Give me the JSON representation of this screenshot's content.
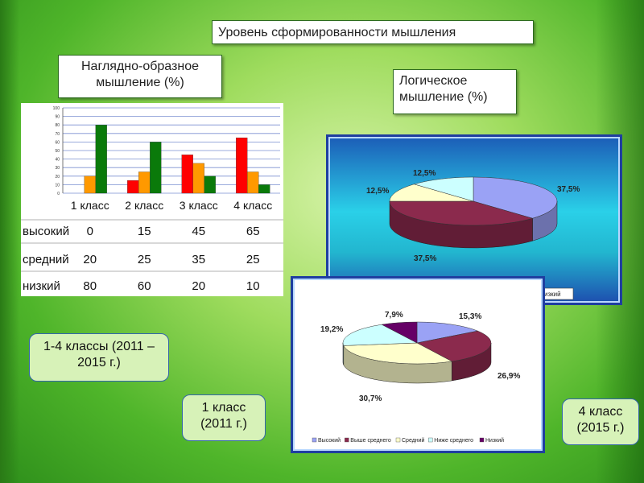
{
  "title": "Уровень сформированности мышления",
  "left_label": "Наглядно-образное мышление (%)",
  "right_label": "Логическое мышление (%)",
  "callouts": {
    "left": "1-4 классы (2011 – 2015 г.)",
    "middle": "1 класс (2011 г.)",
    "right": "4 класс (2015 г.)"
  },
  "colors": {
    "высокий": "#ff0000",
    "средний": "#ff9900",
    "низкий": "#0a7a0a"
  },
  "chart_data": [
    {
      "type": "bar",
      "categories": [
        "1 класс",
        "2 класс",
        "3 класс",
        "4 класс"
      ],
      "series": [
        {
          "name": "высокий",
          "values": [
            0,
            15,
            45,
            65
          ]
        },
        {
          "name": "средний",
          "values": [
            20,
            25,
            35,
            25
          ]
        },
        {
          "name": "низкий",
          "values": [
            80,
            60,
            20,
            10
          ]
        }
      ],
      "ylim": [
        0,
        100
      ],
      "yticks": [
        "0",
        "10",
        "20",
        "30",
        "40",
        "50",
        "60",
        "70",
        "80",
        "90",
        "100"
      ],
      "grid": true
    },
    {
      "type": "pie",
      "labels": [
        "37,5%",
        "37,5%",
        "12,5%",
        "12,5%"
      ],
      "values": [
        37.5,
        37.5,
        12.5,
        12.5
      ],
      "colors": [
        "#9aa2f5",
        "#8b2a4d",
        "#ffffcc",
        "#ccffff"
      ],
      "legend_fragment": "изкий"
    },
    {
      "type": "pie",
      "labels": [
        "15,3%",
        "26,9%",
        "30,7%",
        "19,2%",
        "7,9%"
      ],
      "values": [
        15.3,
        26.9,
        30.7,
        19.2,
        7.9
      ],
      "colors": [
        "#9aa2f5",
        "#8b2a4d",
        "#ffffcc",
        "#ccffff",
        "#660066"
      ],
      "legend": [
        "Высокий",
        "Выше среднего",
        "Средний",
        "Ниже среднего",
        "Низкий"
      ]
    }
  ]
}
